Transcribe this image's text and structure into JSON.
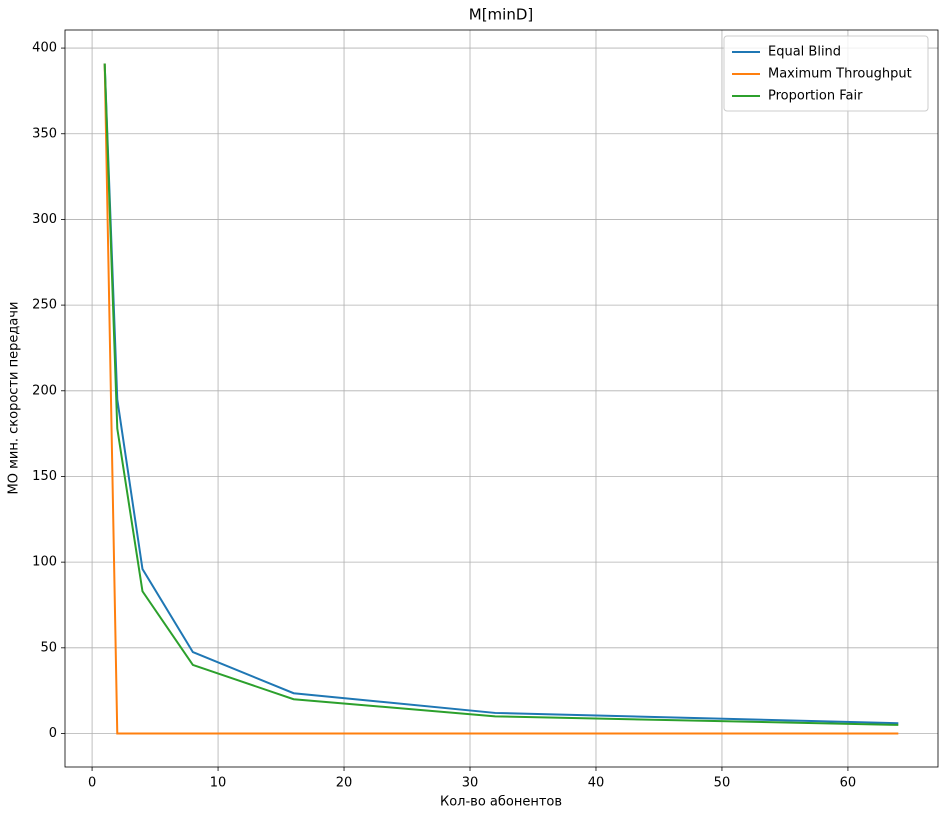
{
  "chart_data": {
    "type": "line",
    "title": "M[minD]",
    "x_label": "Кол-во абонентов",
    "y_label": "МО мин. скорости передачи",
    "x": [
      1,
      2,
      4,
      8,
      16,
      32,
      64
    ],
    "series": [
      {
        "name": "Equal Blind",
        "color": "#1f77b4",
        "values": [
          391,
          195,
          96,
          47.5,
          23.5,
          12,
          6
        ]
      },
      {
        "name": "Maximum Throughput",
        "color": "#ff7f0e",
        "values": [
          391,
          0,
          0,
          0,
          0,
          0,
          0
        ]
      },
      {
        "name": "Proportion Fair",
        "color": "#2ca02c",
        "values": [
          391,
          178,
          83,
          40,
          20,
          10,
          5
        ]
      }
    ],
    "xlim": [
      -2.15,
      67.15
    ],
    "ylim": [
      -19.55,
      410.55
    ],
    "xticks": [
      0,
      10,
      20,
      30,
      40,
      50,
      60
    ],
    "yticks": [
      0,
      50,
      100,
      150,
      200,
      250,
      300,
      350,
      400
    ],
    "grid": true,
    "legend": "upper right"
  }
}
